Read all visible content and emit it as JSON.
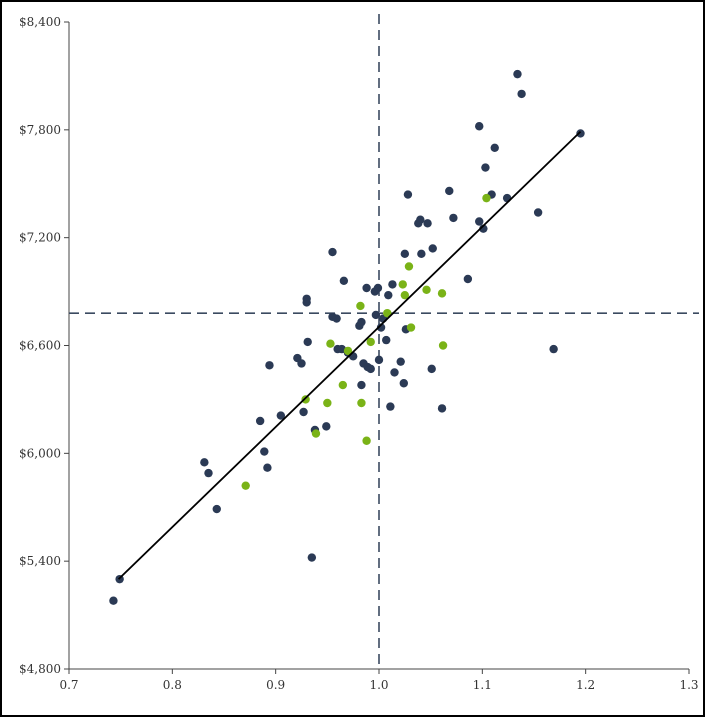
{
  "chart_data": {
    "type": "scatter",
    "xlim": [
      0.7,
      1.3
    ],
    "ylim": [
      4800,
      8400
    ],
    "x_ticks": [
      0.7,
      0.8,
      0.9,
      1.0,
      1.1,
      1.2,
      1.3
    ],
    "x_tick_labels": [
      "0.7",
      "0.8",
      "0.9",
      "1.0",
      "1.1",
      "1.2",
      "1.3"
    ],
    "y_ticks": [
      4800,
      5400,
      6000,
      6600,
      7200,
      7800,
      8400
    ],
    "y_tick_labels": [
      "$4,800",
      "$5,400",
      "$6,000",
      "$6,600",
      "$7,200",
      "$7,800",
      "$8,400"
    ],
    "grid": false,
    "reference_lines": {
      "x": 1.0,
      "y": 6780,
      "style": "dashed",
      "color": "#3b4a60"
    },
    "trend_line": {
      "x": [
        0.748,
        1.195
      ],
      "y": [
        5300,
        7790
      ],
      "color": "#000000"
    },
    "series": [
      {
        "color": "#2b3a55",
        "points": [
          [
            0.743,
            5180
          ],
          [
            0.749,
            5300
          ],
          [
            0.843,
            5690
          ],
          [
            0.831,
            5950
          ],
          [
            0.835,
            5890
          ],
          [
            0.889,
            6010
          ],
          [
            0.892,
            5920
          ],
          [
            0.885,
            6180
          ],
          [
            0.905,
            6210
          ],
          [
            0.894,
            6490
          ],
          [
            0.921,
            6530
          ],
          [
            0.925,
            6500
          ],
          [
            0.927,
            6230
          ],
          [
            0.931,
            6620
          ],
          [
            0.935,
            5420
          ],
          [
            0.938,
            6130
          ],
          [
            0.949,
            6150
          ],
          [
            0.93,
            6840
          ],
          [
            0.93,
            6860
          ],
          [
            0.955,
            6760
          ],
          [
            0.955,
            7120
          ],
          [
            0.96,
            6580
          ],
          [
            0.964,
            6580
          ],
          [
            0.966,
            6960
          ],
          [
            0.959,
            6750
          ],
          [
            0.97,
            6560
          ],
          [
            0.975,
            6540
          ],
          [
            0.981,
            6710
          ],
          [
            0.983,
            6730
          ],
          [
            0.983,
            6380
          ],
          [
            0.985,
            6500
          ],
          [
            0.988,
            6920
          ],
          [
            0.989,
            6480
          ],
          [
            0.992,
            6470
          ],
          [
            0.996,
            6900
          ],
          [
            0.997,
            6770
          ],
          [
            0.999,
            6920
          ],
          [
            1.0,
            6520
          ],
          [
            1.002,
            6700
          ],
          [
            1.004,
            6750
          ],
          [
            1.007,
            6630
          ],
          [
            1.009,
            6880
          ],
          [
            1.013,
            6940
          ],
          [
            1.011,
            6260
          ],
          [
            1.015,
            6450
          ],
          [
            1.021,
            6510
          ],
          [
            1.024,
            6390
          ],
          [
            1.026,
            6690
          ],
          [
            1.028,
            7440
          ],
          [
            1.025,
            7110
          ],
          [
            1.038,
            7280
          ],
          [
            1.04,
            7300
          ],
          [
            1.041,
            7110
          ],
          [
            1.047,
            7280
          ],
          [
            1.051,
            6470
          ],
          [
            1.052,
            7140
          ],
          [
            1.061,
            6250
          ],
          [
            1.068,
            7460
          ],
          [
            1.072,
            7310
          ],
          [
            1.086,
            6970
          ],
          [
            1.097,
            7290
          ],
          [
            1.097,
            7820
          ],
          [
            1.101,
            7250
          ],
          [
            1.103,
            7590
          ],
          [
            1.109,
            7440
          ],
          [
            1.112,
            7700
          ],
          [
            1.124,
            7420
          ],
          [
            1.134,
            8110
          ],
          [
            1.138,
            8000
          ],
          [
            1.154,
            7340
          ],
          [
            1.169,
            6580
          ],
          [
            1.195,
            7780
          ]
        ]
      },
      {
        "color": "#7ab317",
        "points": [
          [
            0.871,
            5820
          ],
          [
            0.929,
            6300
          ],
          [
            0.939,
            6110
          ],
          [
            0.95,
            6280
          ],
          [
            0.953,
            6610
          ],
          [
            0.965,
            6380
          ],
          [
            0.97,
            6570
          ],
          [
            0.982,
            6820
          ],
          [
            0.983,
            6280
          ],
          [
            0.988,
            6070
          ],
          [
            0.992,
            6620
          ],
          [
            1.008,
            6780
          ],
          [
            1.023,
            6940
          ],
          [
            1.025,
            6880
          ],
          [
            1.029,
            7040
          ],
          [
            1.031,
            6700
          ],
          [
            1.046,
            6910
          ],
          [
            1.061,
            6890
          ],
          [
            1.062,
            6600
          ],
          [
            1.104,
            7420
          ]
        ]
      }
    ]
  }
}
